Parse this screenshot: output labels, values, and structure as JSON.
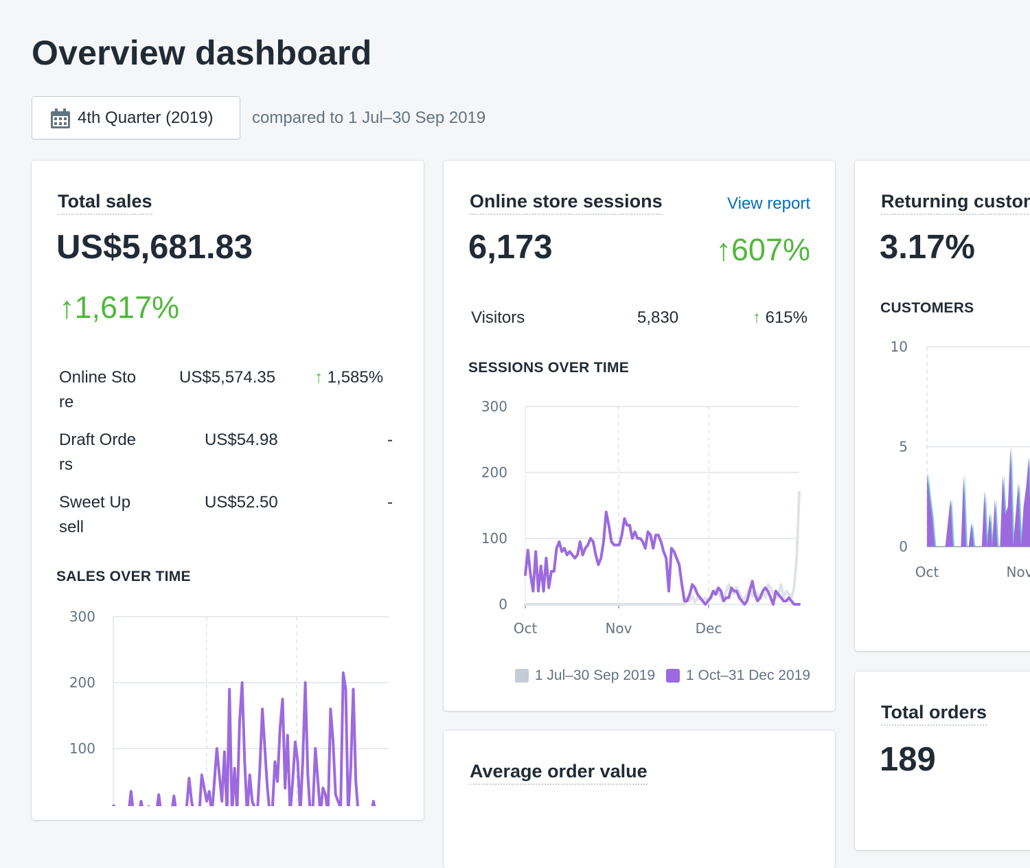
{
  "page": {
    "title": "Overview dashboard"
  },
  "date_range": {
    "label": "4th Quarter (2019)",
    "compare_text": "compared to 1 Jul–30 Sep 2019"
  },
  "colors": {
    "current": "#9c6ade",
    "previous": "#dfe3e8",
    "accent_teal": "#47c1bf",
    "positive": "#50b83c",
    "link": "#006fbb"
  },
  "total_sales": {
    "title": "Total sales",
    "value": "US$5,681.83",
    "change": "1,617%",
    "rows": [
      {
        "name_line1": "Online Sto",
        "name_line2": "re",
        "value": "US$5,574.35",
        "change": "1,585%"
      },
      {
        "name_line1": "Draft Orde",
        "name_line2": "rs",
        "value": "US$54.98",
        "change": "-"
      },
      {
        "name_line1": "Sweet Up",
        "name_line2": "sell",
        "value": "US$52.50",
        "change": "-"
      }
    ],
    "chart_title": "SALES OVER TIME",
    "chart_data": {
      "type": "line",
      "y_ticks": [
        "300",
        "200",
        "100"
      ],
      "ylim": [
        0,
        300
      ],
      "series": [
        {
          "values": [
            15,
            0,
            0,
            5,
            0,
            0,
            0,
            35,
            0,
            0,
            0,
            20,
            0,
            0,
            12,
            0,
            0,
            0,
            30,
            0,
            0,
            0,
            0,
            0,
            28,
            0,
            0,
            0,
            0,
            10,
            55,
            20,
            0,
            10,
            0,
            60,
            40,
            20,
            35,
            0,
            50,
            100,
            60,
            20,
            95,
            0,
            190,
            0,
            70,
            5,
            140,
            200,
            80,
            0,
            60,
            20,
            10,
            0,
            70,
            160,
            100,
            40,
            0,
            10,
            80,
            50,
            130,
            175,
            40,
            120,
            0,
            50,
            110,
            80,
            0,
            80,
            200,
            60,
            0,
            10,
            100,
            50,
            0,
            40,
            30,
            0,
            160,
            110,
            30,
            20,
            10,
            215,
            190,
            0,
            70,
            190,
            50,
            0,
            0,
            0,
            0,
            0,
            0,
            20,
            0,
            0,
            0,
            0,
            0,
            0
          ]
        }
      ]
    }
  },
  "sessions": {
    "title": "Online store sessions",
    "link": "View report",
    "value": "6,173",
    "change": "607%",
    "visitors_label": "Visitors",
    "visitors_value": "5,830",
    "visitors_change": "615%",
    "chart_title": "SESSIONS OVER TIME",
    "chart_data": {
      "type": "line",
      "x_ticks": [
        "Oct",
        "Nov",
        "Dec"
      ],
      "y_ticks": [
        "300",
        "200",
        "100",
        "0"
      ],
      "ylim": [
        0,
        300
      ],
      "series": [
        {
          "name": "1 Jul–30 Sep 2019",
          "values": [
            0,
            0,
            0,
            0,
            0,
            0,
            0,
            0,
            0,
            0,
            0,
            0,
            0,
            0,
            0,
            0,
            0,
            0,
            0,
            0,
            0,
            0,
            0,
            0,
            0,
            0,
            0,
            0,
            0,
            0,
            0,
            0,
            0,
            0,
            0,
            0,
            0,
            0,
            0,
            0,
            0,
            0,
            0,
            0,
            0,
            0,
            0,
            0,
            0,
            0,
            0,
            0,
            0,
            0,
            0,
            0,
            0,
            0,
            0,
            0,
            0,
            0,
            10,
            5,
            12,
            3,
            10,
            8,
            5,
            10,
            5,
            8,
            15,
            22,
            18,
            10,
            5,
            20,
            30,
            20,
            15,
            25,
            18,
            10,
            8,
            15,
            25,
            12,
            20,
            15,
            8,
            18,
            10,
            30,
            25,
            15,
            10,
            15,
            30,
            10,
            20,
            15,
            10,
            25,
            70,
            170
          ]
        },
        {
          "name": "1 Oct–31 Dec 2019",
          "values": [
            45,
            82,
            45,
            20,
            80,
            20,
            58,
            20,
            70,
            25,
            50,
            50,
            85,
            95,
            80,
            85,
            75,
            80,
            75,
            70,
            75,
            95,
            75,
            85,
            90,
            100,
            95,
            75,
            60,
            70,
            95,
            140,
            120,
            95,
            90,
            90,
            90,
            105,
            130,
            120,
            120,
            100,
            110,
            100,
            100,
            95,
            85,
            110,
            105,
            85,
            105,
            105,
            95,
            80,
            70,
            20,
            85,
            80,
            70,
            60,
            30,
            5,
            5,
            15,
            30,
            25,
            15,
            10,
            5,
            0,
            5,
            10,
            20,
            15,
            25,
            20,
            5,
            10,
            10,
            25,
            20,
            20,
            10,
            5,
            0,
            5,
            20,
            35,
            15,
            5,
            10,
            20,
            25,
            20,
            10,
            0,
            20,
            15,
            10,
            5,
            5,
            10,
            5,
            0,
            0,
            0
          ]
        }
      ]
    },
    "legend": [
      "1 Jul–30 Sep 2019",
      "1 Oct–31 Dec 2019"
    ]
  },
  "returning": {
    "title": "Returning customer rate",
    "value": "3.17%",
    "chart_title": "CUSTOMERS",
    "chart_data": {
      "type": "area",
      "x_ticks": [
        "Oct",
        "Nov"
      ],
      "y_ticks": [
        "10",
        "5",
        "0"
      ],
      "ylim": [
        0,
        10
      ],
      "values": [
        3.7,
        2.5,
        1.5,
        0,
        0,
        0,
        0,
        0,
        1.2,
        2.4,
        0,
        0,
        0,
        0,
        3.6,
        0,
        0,
        1.2,
        0,
        0,
        0,
        0,
        2.8,
        0,
        1.7,
        0,
        2.4,
        0,
        0,
        3.6,
        1.6,
        2,
        5,
        0,
        1.6,
        3.2,
        0,
        2,
        3,
        4.5,
        0,
        0,
        1.2,
        0,
        2.9,
        1.5,
        5.7,
        2,
        0,
        0,
        0,
        2,
        3.5,
        2.4,
        2.3,
        2,
        0
      ]
    }
  },
  "avg_order": {
    "title": "Average order value"
  },
  "total_orders": {
    "title": "Total orders",
    "value": "189"
  }
}
